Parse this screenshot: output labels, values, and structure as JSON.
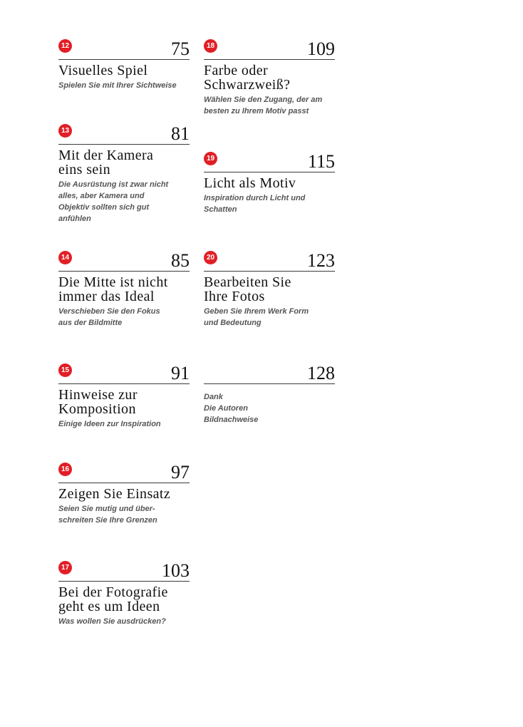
{
  "accent_color": "#e21e26",
  "entries": [
    {
      "chapter": "12",
      "page": "75",
      "title": [
        "Visuelles Spiel"
      ],
      "subtitle": "Spielen Sie mit Ihrer Sichtweise"
    },
    {
      "chapter": "13",
      "page": "81",
      "title": [
        "Mit der Kamera",
        "eins sein"
      ],
      "subtitle": "Die Ausrüstung ist zwar nicht alles, aber Kamera und Objektiv sollten sich gut anfühlen"
    },
    {
      "chapter": "14",
      "page": "85",
      "title": [
        "Die Mitte ist nicht",
        "immer das Ideal"
      ],
      "subtitle": "Verschieben Sie den Fokus aus der Bildmitte"
    },
    {
      "chapter": "15",
      "page": "91",
      "title": [
        "Hinweise zur",
        "Komposition"
      ],
      "subtitle": "Einige Ideen zur Inspiration"
    },
    {
      "chapter": "16",
      "page": "97",
      "title": [
        "Zeigen Sie Einsatz"
      ],
      "subtitle": "Seien Sie mutig und über-schreiten Sie Ihre Grenzen"
    },
    {
      "chapter": "17",
      "page": "103",
      "title": [
        "Bei der Fotografie",
        "geht es um Ideen"
      ],
      "subtitle": "Was wollen Sie ausdrücken?"
    },
    {
      "chapter": "18",
      "page": "109",
      "title": [
        "Farbe oder",
        "Schwarzweiß?"
      ],
      "subtitle": "Wählen Sie den Zugang, der am besten zu Ihrem Motiv passt"
    },
    {
      "chapter": "19",
      "page": "115",
      "title": [
        "Licht als Motiv"
      ],
      "subtitle": "Inspiration durch Licht und Schatten"
    },
    {
      "chapter": "20",
      "page": "123",
      "title": [
        "Bearbeiten Sie",
        "Ihre Fotos"
      ],
      "subtitle": "Geben Sie Ihrem Werk Form und Bedeutung"
    }
  ],
  "appendix": {
    "page": "128",
    "items": [
      "Dank",
      "Die Autoren",
      "Bildnachweise"
    ]
  }
}
